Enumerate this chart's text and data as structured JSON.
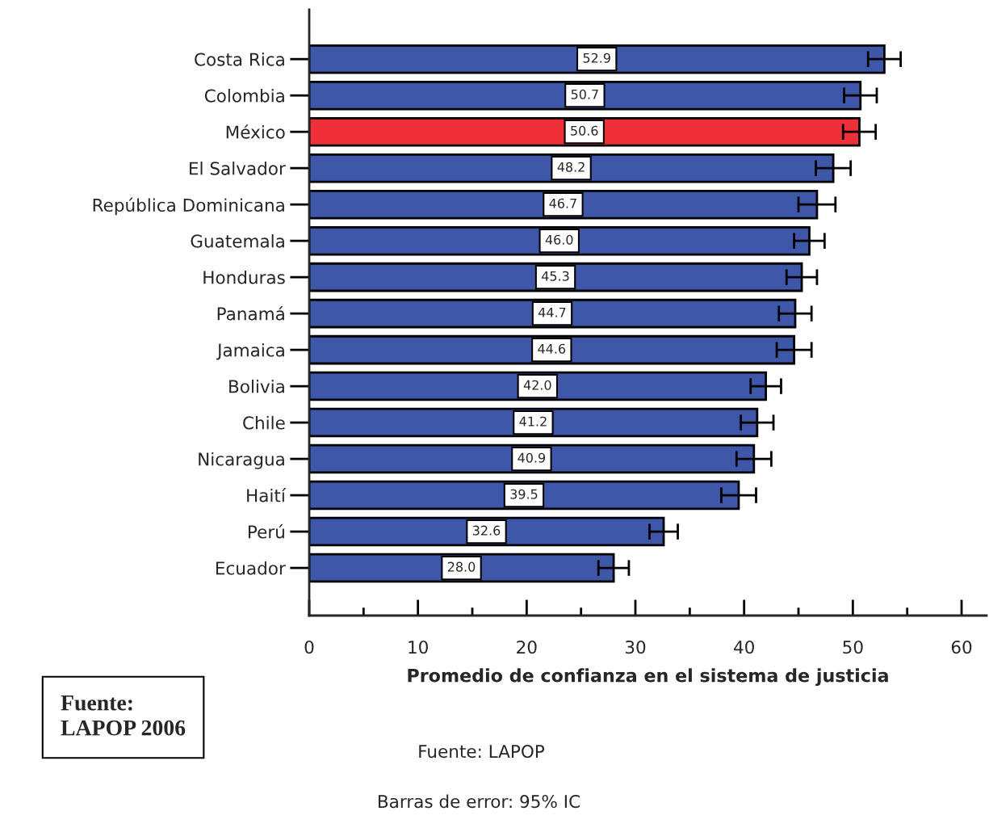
{
  "chart_data": {
    "type": "bar",
    "orientation": "horizontal",
    "categories": [
      "Costa Rica",
      "Colombia",
      "México",
      "El Salvador",
      "República Dominicana",
      "Guatemala",
      "Honduras",
      "Panamá",
      "Jamaica",
      "Bolivia",
      "Chile",
      "Nicaragua",
      "Haití",
      "Perú",
      "Ecuador"
    ],
    "values": [
      52.9,
      50.7,
      50.6,
      48.2,
      46.7,
      46.0,
      45.3,
      44.7,
      44.6,
      42.0,
      41.2,
      40.9,
      39.5,
      32.6,
      28.0
    ],
    "value_labels": [
      "52.9",
      "50.7",
      "50.6",
      "48.2",
      "46.7",
      "46.0",
      "45.3",
      "44.7",
      "44.6",
      "42.0",
      "41.2",
      "40.9",
      "39.5",
      "32.6",
      "28.0"
    ],
    "errors": [
      1.5,
      1.5,
      1.5,
      1.6,
      1.7,
      1.4,
      1.4,
      1.5,
      1.6,
      1.4,
      1.5,
      1.6,
      1.6,
      1.3,
      1.4
    ],
    "colors": [
      "#3f57a8",
      "#3f57a8",
      "#f03039",
      "#3f57a8",
      "#3f57a8",
      "#3f57a8",
      "#3f57a8",
      "#3f57a8",
      "#3f57a8",
      "#3f57a8",
      "#3f57a8",
      "#3f57a8",
      "#3f57a8",
      "#3f57a8",
      "#3f57a8"
    ],
    "xlim": [
      0,
      62.3
    ],
    "xticks": [
      0,
      {
        "value": 5,
        "label": null
      },
      10,
      {
        "value": 15,
        "label": null
      },
      20,
      {
        "value": 25,
        "label": null
      },
      30,
      {
        "value": 35,
        "label": null
      },
      40,
      {
        "value": 45,
        "label": null
      },
      50,
      {
        "value": 55,
        "label": null
      },
      60
    ],
    "xlabel": "Promedio de confianza en el sistema de justicia",
    "annotations": [
      "Fuente:\nLAPOP 2006",
      "Fuente: LAPOP",
      "Barras de error: 95% IC"
    ],
    "grid": false,
    "legend": false
  }
}
